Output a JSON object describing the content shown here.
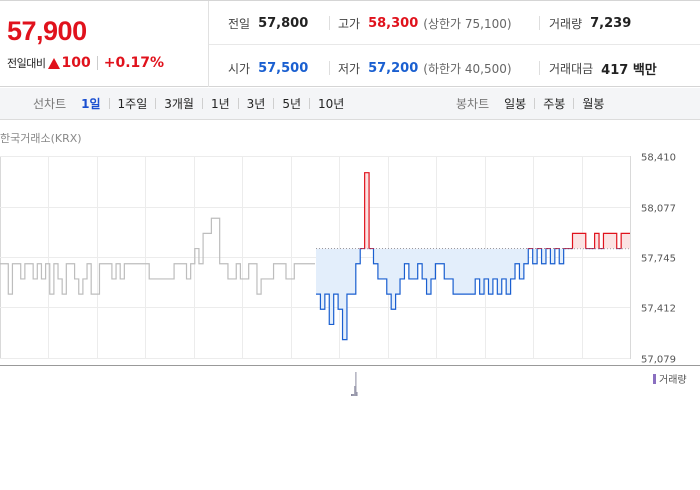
{
  "summary": {
    "current_price": "57,900",
    "change_label": "전일대비",
    "change_amount": "100",
    "change_rate": "+0.17%",
    "prev_close_label": "전일",
    "prev_close": "57,800",
    "open_label": "시가",
    "open": "57,500",
    "high_label": "고가",
    "high": "58,300",
    "upper_limit": "(상한가 75,100)",
    "low_label": "저가",
    "low": "57,200",
    "lower_limit": "(하한가 40,500)",
    "volume_label": "거래량",
    "volume": "7,239",
    "trade_value_label": "거래대금",
    "trade_value": "417 백만"
  },
  "tabs": {
    "line_chart_title": "선차트",
    "line_periods": [
      "1일",
      "1주일",
      "3개월",
      "1년",
      "3년",
      "5년",
      "10년"
    ],
    "active_period": "1일",
    "candle_chart_title": "봉차트",
    "candle_periods": [
      "일봉",
      "주봉",
      "월봉"
    ]
  },
  "chart": {
    "exchange_label": "한국거래소(KRX)",
    "volume_legend": "거래량",
    "colors": {
      "up": "#e0121c",
      "down": "#1a5fd0",
      "prev_day": "#bdbdbd",
      "fill_down": "#e3eefb",
      "fill_up": "#fbe3e3"
    }
  },
  "chart_data": {
    "type": "line",
    "title": "",
    "xlabel": "",
    "ylabel": "",
    "y_ticks": [
      "58,410",
      "58,077",
      "57,745",
      "57,412",
      "57,079"
    ],
    "ylim": [
      57079,
      58410
    ],
    "baseline": 57800,
    "series": [
      {
        "values": [
          57700,
          57700,
          57500,
          57700,
          57700,
          57600,
          57700,
          57700,
          57600,
          57700,
          57600,
          57700,
          57500,
          57700,
          57600,
          57500,
          57700,
          57700,
          57600,
          57500,
          57600,
          57700,
          57500,
          57500,
          57700,
          57700,
          57700,
          57600,
          57700,
          57600,
          57700,
          57700,
          57700,
          57700,
          57700,
          57700,
          57600,
          57600,
          57600,
          57600,
          57600,
          57600,
          57700,
          57700,
          57700,
          57600,
          57700,
          57800,
          57700,
          57900,
          57900,
          58000,
          58000,
          57700,
          57700,
          57600,
          57600,
          57700,
          57600,
          57600,
          57700,
          57700,
          57500,
          57600,
          57600,
          57600,
          57700,
          57700,
          57700,
          57600,
          57600,
          57700,
          57700,
          57700,
          57700,
          57700,
          57700
        ]
      },
      {
        "values": [
          57500,
          57400,
          57500,
          57300,
          57500,
          57400,
          57200,
          57500,
          57500,
          57700,
          57800,
          58300,
          57800,
          57700,
          57600,
          57600,
          57500,
          57400,
          57500,
          57600,
          57700,
          57600,
          57600,
          57700,
          57600,
          57500,
          57600,
          57700,
          57700,
          57600,
          57600,
          57500,
          57500,
          57500,
          57500,
          57500,
          57600,
          57500,
          57600,
          57500,
          57600,
          57500,
          57600,
          57500,
          57600,
          57700,
          57600,
          57700,
          57800,
          57700,
          57800,
          57700,
          57800,
          57700,
          57800,
          57700,
          57800,
          57800,
          57900,
          57900,
          57900,
          57800,
          57800,
          57900,
          57800,
          57900,
          57900,
          57900,
          57800,
          57900,
          57900,
          57900
        ]
      }
    ],
    "volume": [
      1,
      1,
      1,
      5,
      12,
      2
    ]
  }
}
